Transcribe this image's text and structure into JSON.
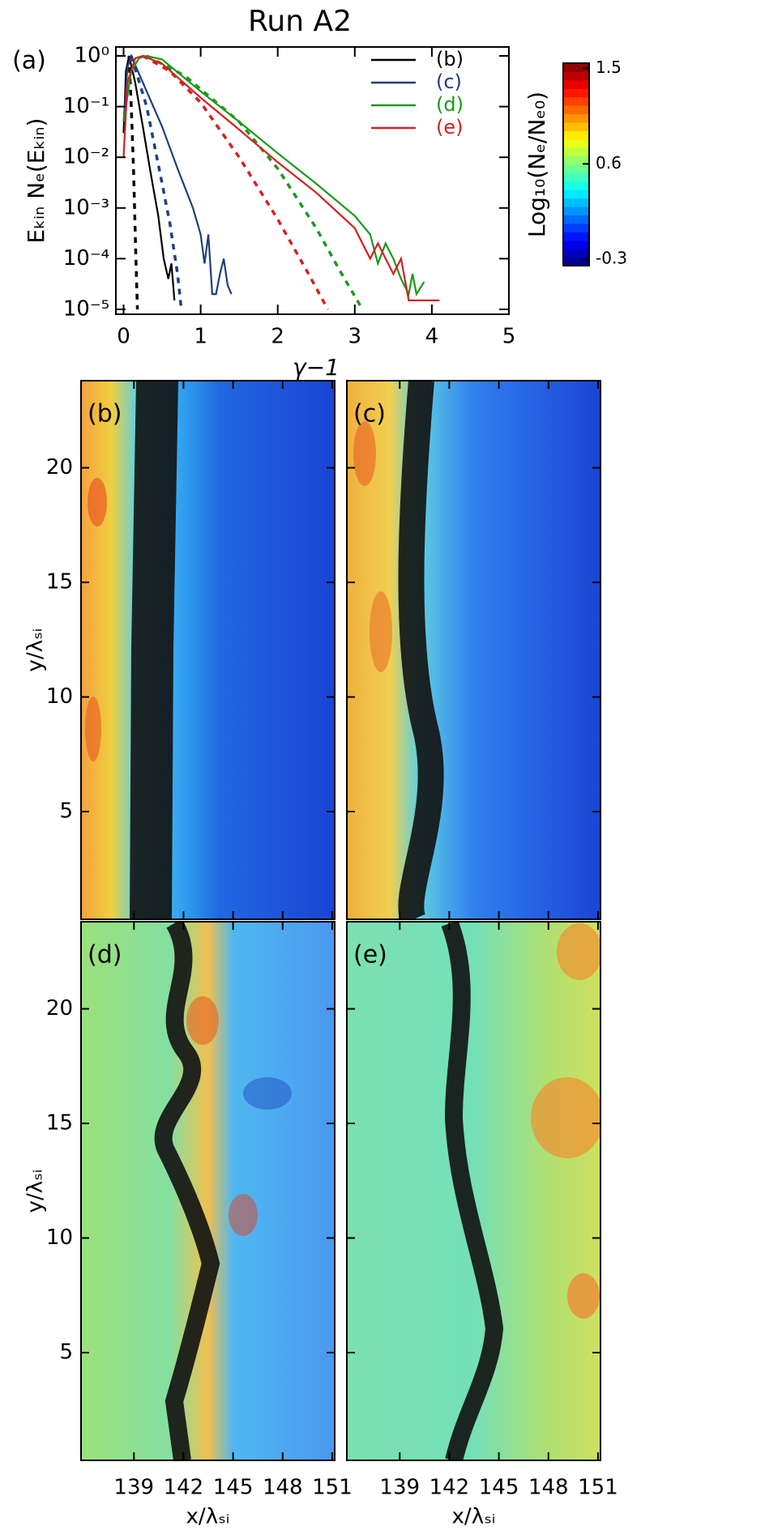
{
  "chart_data": [
    {
      "type": "line",
      "title": "Run A2",
      "panel_label": "(a)",
      "x_label": "γ−1",
      "y_label": "Eₖᵢₙ Nₑ(Eₖᵢₙ)",
      "xlim": [
        -0.1,
        5
      ],
      "xticks": [
        0,
        1,
        2,
        3,
        4,
        5
      ],
      "ylim": [
        8e-06,
        1.5
      ],
      "log_y": true,
      "yticks": [
        {
          "value": 1,
          "label": "10⁰"
        },
        {
          "value": 0.1,
          "label": "10⁻¹"
        },
        {
          "value": 0.01,
          "label": "10⁻²"
        },
        {
          "value": 0.001,
          "label": "10⁻³"
        },
        {
          "value": 0.0001,
          "label": "10⁻⁴"
        },
        {
          "value": 1e-05,
          "label": "10⁻⁵"
        }
      ],
      "legend": "upper right",
      "series": [
        {
          "name": "(b)",
          "color": "#000000",
          "x": [
            0,
            0.03,
            0.07,
            0.15,
            0.25,
            0.35,
            0.45,
            0.52,
            0.58,
            0.62,
            0.66
          ],
          "values": [
            0.03,
            0.5,
            1,
            0.3,
            0.04,
            0.005,
            0.0007,
            0.0001,
            4e-05,
            8e-05,
            1.5e-05
          ]
        },
        {
          "name": "(c)",
          "color": "#1f3f7f",
          "x": [
            0,
            0.05,
            0.1,
            0.3,
            0.5,
            0.7,
            0.9,
            1.0,
            1.05,
            1.1,
            1.15,
            1.2,
            1.25,
            1.3,
            1.35,
            1.4
          ],
          "values": [
            0.05,
            0.6,
            1,
            0.2,
            0.04,
            0.006,
            0.001,
            0.0003,
            8e-05,
            0.0003,
            2e-05,
            2e-05,
            5e-05,
            0.0001,
            3e-05,
            2e-05
          ]
        },
        {
          "name": "(d)",
          "color": "#1a9a1a",
          "x": [
            0,
            0.1,
            0.2,
            0.3,
            0.5,
            1,
            1.5,
            2,
            2.5,
            3,
            3.2,
            3.3,
            3.4,
            3.5,
            3.6,
            3.7,
            3.75,
            3.8,
            3.9
          ],
          "values": [
            0.05,
            0.5,
            0.9,
            1,
            0.85,
            0.2,
            0.05,
            0.012,
            0.003,
            0.0007,
            0.0003,
            8e-05,
            0.0002,
            0.0001,
            4e-05,
            2e-05,
            5e-05,
            2e-05,
            3.5e-05
          ]
        },
        {
          "name": "(e)",
          "color": "#d42020",
          "x": [
            0,
            0.05,
            0.15,
            0.25,
            0.5,
            1,
            1.5,
            2,
            2.5,
            3,
            3.2,
            3.3,
            3.5,
            3.6,
            3.7,
            4.1
          ],
          "values": [
            0.01,
            0.3,
            0.9,
            1,
            0.7,
            0.15,
            0.035,
            0.008,
            0.002,
            0.0004,
            0.0001,
            0.0002,
            5e-05,
            0.0001,
            1.5e-05,
            1.5e-05
          ]
        }
      ],
      "fits": [
        {
          "color": "#000000",
          "x": [
            0.07,
            0.1,
            0.13,
            0.16,
            0.18
          ],
          "values": [
            1,
            0.1,
            0.005,
            0.0001,
            1e-05
          ]
        },
        {
          "color": "#1f3f7f",
          "x": [
            0.1,
            0.3,
            0.5,
            0.6,
            0.7,
            0.75
          ],
          "values": [
            1,
            0.1,
            0.003,
            0.0005,
            5e-05,
            1e-05
          ]
        },
        {
          "color": "#1a9a1a",
          "x": [
            0.3,
            0.8,
            1.5,
            2,
            2.5,
            2.8,
            3.1
          ],
          "values": [
            1,
            0.4,
            0.05,
            0.006,
            0.0004,
            6e-05,
            1e-05
          ]
        },
        {
          "color": "#d42020",
          "x": [
            0.25,
            0.6,
            1,
            1.5,
            2,
            2.4,
            2.65
          ],
          "values": [
            1,
            0.5,
            0.12,
            0.01,
            0.0006,
            5e-05,
            1e-05
          ]
        }
      ]
    },
    {
      "type": "heatmap",
      "colormap": "jet",
      "colorbar_label": "Log₁₀(Nₑ/Nₑ₀)",
      "clim": [
        -0.36,
        1.55
      ],
      "cticks": [
        -0.3,
        0.6,
        1.5
      ],
      "x_label": "x/λₛᵢ",
      "y_label": "y/λₛᵢ",
      "xlim": [
        135.8,
        151.15
      ],
      "xticks": [
        139,
        142,
        145,
        148,
        151
      ],
      "ylim": [
        0.3,
        23.8
      ],
      "yticks": [
        5,
        10,
        15,
        20
      ],
      "panels": [
        {
          "label": "(b)"
        },
        {
          "label": "(c)"
        },
        {
          "label": "(d)"
        },
        {
          "label": "(e)"
        }
      ]
    }
  ]
}
